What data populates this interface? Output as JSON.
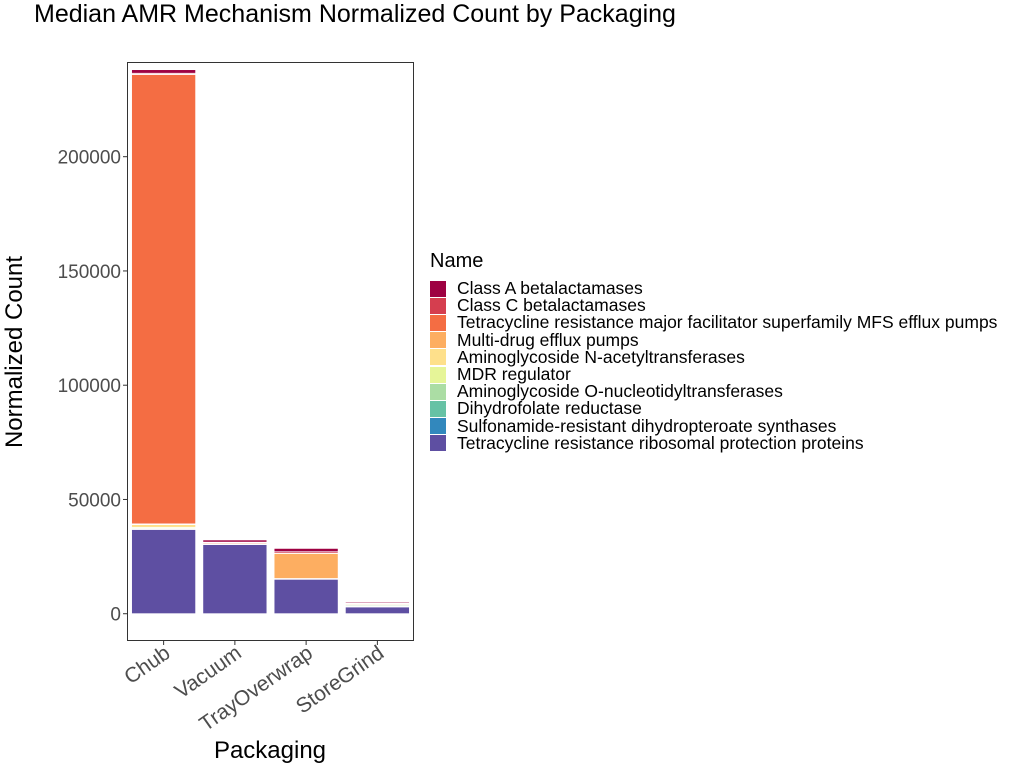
{
  "chart_data": {
    "type": "bar",
    "stacked": true,
    "title": "Median AMR Mechanism Normalized Count by Packaging",
    "xlabel": "Packaging",
    "ylabel": "Normalized Count",
    "categories": [
      "Chub",
      "Vacuum",
      "TrayOverwrap",
      "StoreGrind"
    ],
    "ylim": [
      -11500,
      241000
    ],
    "yticks": [
      0,
      50000,
      100000,
      150000,
      200000
    ],
    "ytick_labels": [
      "0",
      "50000",
      "100000",
      "150000",
      "200000"
    ],
    "grid": false,
    "legend_position": "right",
    "legend_title": "Name",
    "series": [
      {
        "name": "Tetracycline resistance ribosomal protection proteins",
        "color": "#5E4FA2",
        "values": [
          36900,
          30300,
          15100,
          3000
        ]
      },
      {
        "name": "Sulfonamide-resistant dihydropteroate synthases",
        "color": "#3288BD",
        "values": [
          0,
          0,
          0,
          0
        ]
      },
      {
        "name": "Dihydrofolate reductase",
        "color": "#66C2A5",
        "values": [
          0,
          0,
          0,
          200
        ]
      },
      {
        "name": "Aminoglycoside O-nucleotidyltransferases",
        "color": "#ABDDA4",
        "values": [
          400,
          0,
          0,
          500
        ]
      },
      {
        "name": "MDR regulator",
        "color": "#E6F598",
        "values": [
          500,
          0,
          0,
          0
        ]
      },
      {
        "name": "Aminoglycoside N-acetyltransferases",
        "color": "#FEE08B",
        "values": [
          1200,
          0,
          300,
          300
        ]
      },
      {
        "name": "Multi-drug efflux pumps",
        "color": "#FDAE61",
        "values": [
          300,
          200,
          11000,
          400
        ]
      },
      {
        "name": "Tetracycline resistance major facilitator superfamily MFS efflux pumps",
        "color": "#F46D43",
        "values": [
          196700,
          500,
          0,
          0
        ]
      },
      {
        "name": "Class C betalactamases",
        "color": "#D53E4F",
        "values": [
          500,
          300,
          700,
          300
        ]
      },
      {
        "name": "Class A betalactamases",
        "color": "#9E0142",
        "values": [
          1600,
          1000,
          1500,
          500
        ]
      }
    ],
    "legend_order": [
      "Class A betalactamases",
      "Class C betalactamases",
      "Tetracycline resistance major facilitator superfamily MFS efflux pumps",
      "Multi-drug efflux pumps",
      "Aminoglycoside N-acetyltransferases",
      "MDR regulator",
      "Aminoglycoside O-nucleotidyltransferases",
      "Dihydrofolate reductase",
      "Sulfonamide-resistant dihydropteroate synthases",
      "Tetracycline resistance ribosomal protection proteins"
    ]
  }
}
